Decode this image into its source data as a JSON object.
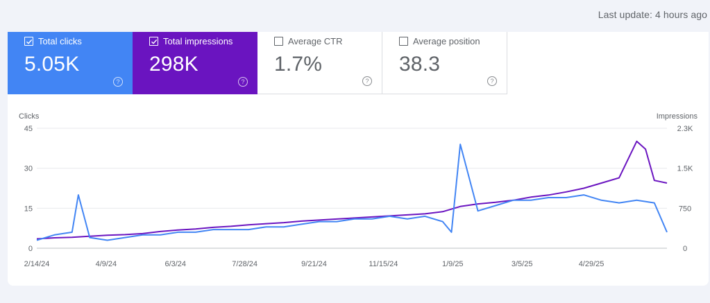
{
  "header": {
    "last_update": "Last update: 4 hours ago"
  },
  "cards": [
    {
      "id": "clicks",
      "label": "Total clicks",
      "value": "5.05K",
      "checked": true,
      "color": "#4285f4"
    },
    {
      "id": "impressions",
      "label": "Total impressions",
      "value": "298K",
      "checked": true,
      "color": "#6a14c0"
    },
    {
      "id": "ctr",
      "label": "Average CTR",
      "value": "1.7%",
      "checked": false
    },
    {
      "id": "position",
      "label": "Average position",
      "value": "38.3",
      "checked": false
    }
  ],
  "chart_data": {
    "type": "line",
    "left_axis_label": "Clicks",
    "right_axis_label": "Impressions",
    "left_ticks": [
      "45",
      "30",
      "15",
      "0"
    ],
    "right_ticks": [
      "2.3K",
      "1.5K",
      "750",
      "0"
    ],
    "left_ylim": [
      0,
      45
    ],
    "right_ylim": [
      0,
      2300
    ],
    "x_tick_labels": [
      "2/14/24",
      "4/9/24",
      "6/3/24",
      "7/28/24",
      "9/21/24",
      "11/15/24",
      "1/9/25",
      "3/5/25",
      "4/29/25"
    ],
    "x_domain": [
      "2/14/24",
      "6/28/25"
    ],
    "grid": true,
    "series": [
      {
        "name": "Total clicks",
        "color": "#4285f4",
        "axis": "left",
        "x": [
          "2/14/24",
          "2/28/24",
          "3/13/24",
          "3/18/24",
          "3/27/24",
          "4/10/24",
          "4/24/24",
          "5/8/24",
          "5/22/24",
          "6/5/24",
          "6/19/24",
          "7/3/24",
          "7/17/24",
          "7/31/24",
          "8/14/24",
          "8/28/24",
          "9/11/24",
          "9/25/24",
          "10/9/24",
          "10/23/24",
          "11/6/24",
          "11/20/24",
          "12/4/24",
          "12/18/24",
          "1/1/25",
          "1/8/25",
          "1/15/25",
          "1/29/25",
          "2/12/25",
          "2/26/25",
          "3/12/25",
          "3/26/25",
          "4/9/25",
          "4/23/25",
          "5/7/25",
          "5/21/25",
          "6/4/25",
          "6/18/25",
          "6/28/25"
        ],
        "values": [
          3,
          5,
          6,
          20,
          4,
          3,
          4,
          5,
          5,
          6,
          6,
          7,
          7,
          7,
          8,
          8,
          9,
          10,
          10,
          11,
          11,
          12,
          11,
          12,
          10,
          6,
          39,
          14,
          16,
          18,
          18,
          19,
          19,
          20,
          18,
          17,
          18,
          17,
          6
        ]
      },
      {
        "name": "Total impressions",
        "color": "#6a14c0",
        "axis": "right",
        "x": [
          "2/14/24",
          "2/28/24",
          "3/13/24",
          "3/27/24",
          "4/10/24",
          "4/24/24",
          "5/8/24",
          "5/22/24",
          "6/5/24",
          "6/19/24",
          "7/3/24",
          "7/17/24",
          "7/31/24",
          "8/14/24",
          "8/28/24",
          "9/11/24",
          "9/25/24",
          "10/9/24",
          "10/23/24",
          "11/6/24",
          "11/20/24",
          "12/4/24",
          "12/18/24",
          "1/1/25",
          "1/15/25",
          "1/29/25",
          "2/12/25",
          "2/26/25",
          "3/12/25",
          "3/26/25",
          "4/9/25",
          "4/23/25",
          "5/7/25",
          "5/21/25",
          "6/4/25",
          "6/11/25",
          "6/18/25",
          "6/28/25"
        ],
        "values": [
          180,
          200,
          210,
          230,
          250,
          260,
          280,
          320,
          350,
          370,
          400,
          420,
          450,
          470,
          490,
          520,
          540,
          560,
          580,
          600,
          620,
          640,
          660,
          700,
          800,
          850,
          880,
          920,
          980,
          1020,
          1080,
          1150,
          1250,
          1350,
          2050,
          1900,
          1300,
          1250
        ]
      }
    ]
  }
}
